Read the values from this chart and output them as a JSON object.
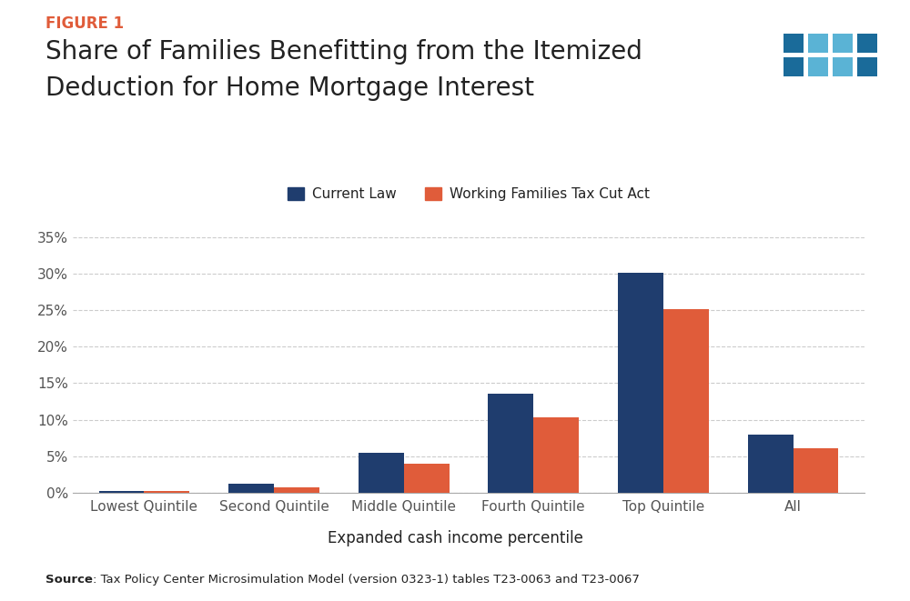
{
  "categories": [
    "Lowest Quintile",
    "Second Quintile",
    "Middle Quintile",
    "Fourth Quintile",
    "Top Quintile",
    "All"
  ],
  "current_law": [
    0.003,
    0.012,
    0.055,
    0.135,
    0.301,
    0.08
  ],
  "working_families": [
    0.002,
    0.008,
    0.04,
    0.103,
    0.251,
    0.061
  ],
  "current_law_color": "#1f3d6e",
  "working_families_color": "#e05c3a",
  "current_law_label": "Current Law",
  "working_families_label": "Working Families Tax Cut Act",
  "title_line1": "Share of Families Benefitting from the Itemized",
  "title_line2": "Deduction for Home Mortgage Interest",
  "figure_label": "FIGURE 1",
  "figure_label_color": "#e05c3a",
  "xlabel": "Expanded cash income percentile",
  "ylim": [
    0,
    0.37
  ],
  "yticks": [
    0.0,
    0.05,
    0.1,
    0.15,
    0.2,
    0.25,
    0.3,
    0.35
  ],
  "ytick_labels": [
    "0%",
    "5%",
    "10%",
    "15%",
    "20%",
    "25%",
    "30%",
    "35%"
  ],
  "source_bold": "Source",
  "source_text": ": Tax Policy Center Microsimulation Model (version 0323-1) tables T23-0063 and T23-0067",
  "background_color": "#ffffff",
  "bar_width": 0.35,
  "tpc_logo_color_dark": "#1a6b9a",
  "tpc_logo_color_light": "#5ab3d5",
  "tpc_logo_bg": "#1e3f6e",
  "grid_color": "#cccccc",
  "tick_color": "#555555",
  "text_color": "#222222"
}
